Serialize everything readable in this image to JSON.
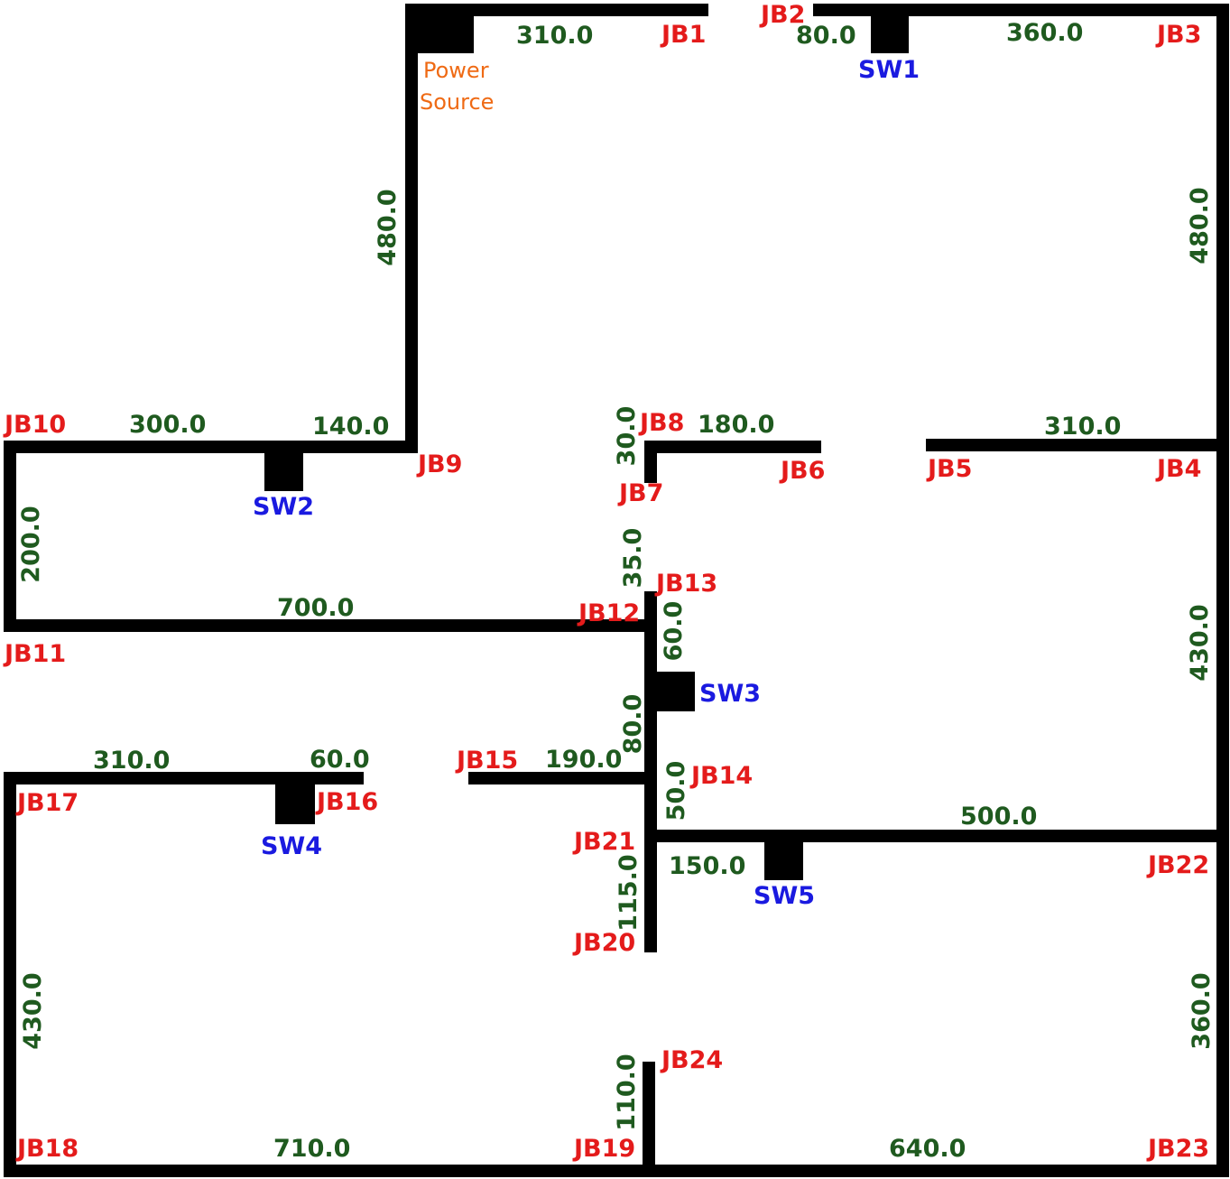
{
  "colors": {
    "wire": "#000000",
    "junction_box": "#e41b1b",
    "switch": "#1a1ae0",
    "length": "#1f5a1f",
    "power_source": "#ef6a14"
  },
  "power_source": {
    "line1": "Power",
    "line2": "Source"
  },
  "junction_boxes": {
    "jb1": "JB1",
    "jb2": "JB2",
    "jb3": "JB3",
    "jb4": "JB4",
    "jb5": "JB5",
    "jb6": "JB6",
    "jb7": "JB7",
    "jb8": "JB8",
    "jb9": "JB9",
    "jb10": "JB10",
    "jb11": "JB11",
    "jb12": "JB12",
    "jb13": "JB13",
    "jb14": "JB14",
    "jb15": "JB15",
    "jb16": "JB16",
    "jb17": "JB17",
    "jb18": "JB18",
    "jb19": "JB19",
    "jb20": "JB20",
    "jb21": "JB21",
    "jb22": "JB22",
    "jb23": "JB23",
    "jb24": "JB24"
  },
  "switches": {
    "sw1": "SW1",
    "sw2": "SW2",
    "sw3": "SW3",
    "sw4": "SW4",
    "sw5": "SW5"
  },
  "lengths": {
    "ps_jb1": "310.0",
    "jb2_sw1": "80.0",
    "sw1_jb3": "360.0",
    "jb3_jb4": "480.0",
    "ps_jb9": "480.0",
    "jb9_sw2": "140.0",
    "sw2_jb10": "300.0",
    "jb10_jb11": "200.0",
    "jb11_jb12": "700.0",
    "jb7_jb8": "30.0",
    "jb8_jb6": "180.0",
    "jb5_jb4": "310.0",
    "jb7_jb13": "35.0",
    "jb13_sw3": "60.0",
    "jb4_jb22": "430.0",
    "sw3_jb21": "80.0",
    "jb15_jb21": "190.0",
    "jb14_jb22_upper": "50.0",
    "jb14_jb22": "500.0",
    "jb17_jb16": "310.0",
    "sw4_jb16": "60.0",
    "jb21_sw5": "150.0",
    "jb21_jb20": "115.0",
    "jb17_jb18": "430.0",
    "jb22_jb23": "360.0",
    "jb24_jb19": "110.0",
    "jb18_jb19": "710.0",
    "jb19_jb23": "640.0"
  }
}
